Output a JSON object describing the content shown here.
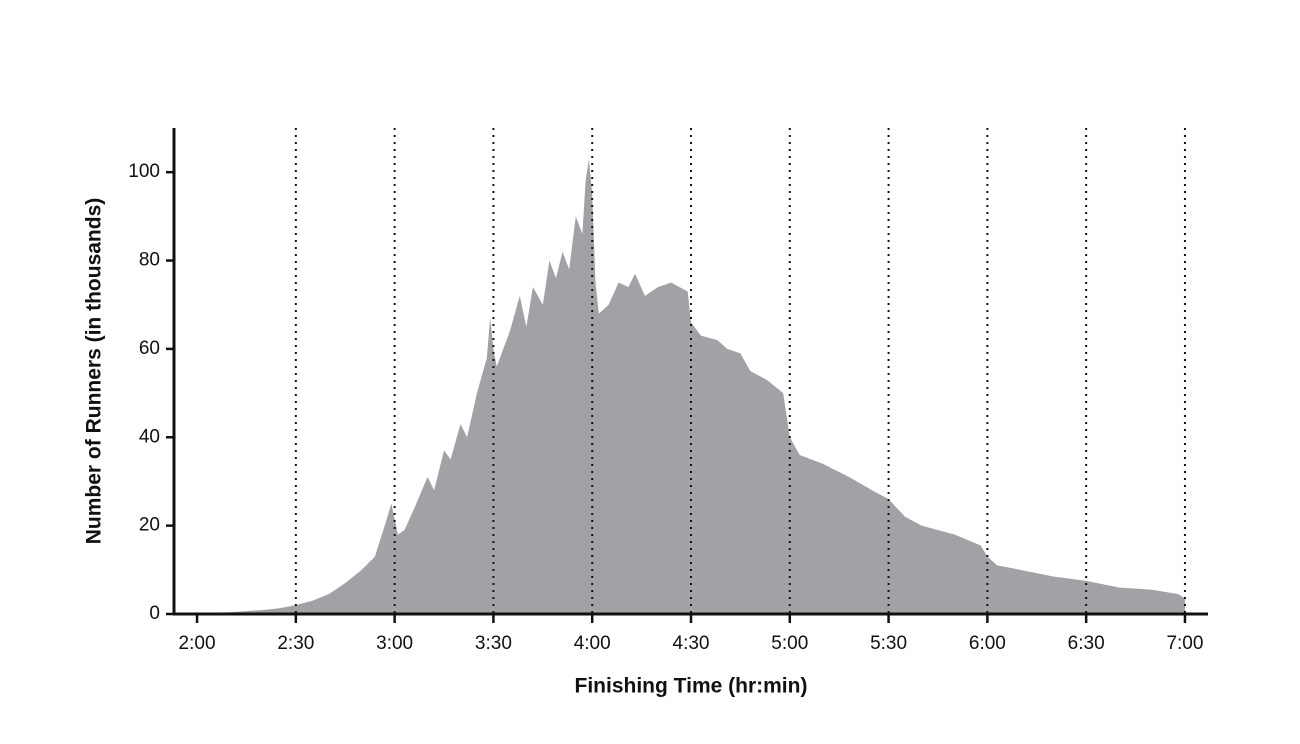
{
  "chart_data": {
    "type": "area",
    "x_label": "Finishing Time (hr:min)",
    "y_label": "Number of Runners (in thousands)",
    "x": [
      120,
      130,
      140,
      145,
      150,
      155,
      160,
      165,
      170,
      174,
      177,
      179,
      181,
      183,
      186,
      190,
      192,
      195,
      197,
      200,
      202,
      205,
      208,
      209,
      210,
      211,
      213,
      215,
      218,
      220,
      222,
      225,
      227,
      229,
      231,
      233,
      235,
      237,
      238,
      239,
      240,
      241,
      242,
      245,
      248,
      251,
      253,
      256,
      260,
      264,
      269,
      270,
      273,
      278,
      281,
      285,
      288,
      293,
      298,
      300,
      303,
      310,
      318,
      325,
      330,
      335,
      340,
      350,
      358,
      360,
      363,
      370,
      380,
      390,
      400,
      410,
      418,
      420
    ],
    "values": [
      0.2,
      0.4,
      0.9,
      1.3,
      2,
      3,
      4.5,
      7,
      10,
      13,
      20,
      25,
      18,
      19,
      24,
      31,
      28,
      37,
      35,
      43,
      40,
      50,
      58,
      67,
      60,
      56,
      60,
      64,
      72,
      65,
      74,
      70,
      80,
      76,
      82,
      78,
      90,
      86,
      98,
      103,
      95,
      75,
      68,
      70,
      75,
      74,
      77,
      72,
      74,
      75,
      73,
      66,
      63,
      62,
      60,
      59,
      55,
      53,
      50,
      40,
      36,
      34,
      31,
      28,
      26,
      22,
      20,
      18,
      15.5,
      13,
      11,
      10,
      8.5,
      7.5,
      6,
      5.5,
      4.5,
      3.5
    ],
    "color": "#a2a1a6",
    "xlim": [
      113,
      427
    ],
    "ylim": [
      0,
      110
    ],
    "xticks": [
      {
        "value": 120,
        "label": "2:00"
      },
      {
        "value": 150,
        "label": "2:30"
      },
      {
        "value": 180,
        "label": "3:00"
      },
      {
        "value": 210,
        "label": "3:30"
      },
      {
        "value": 240,
        "label": "4:00"
      },
      {
        "value": 270,
        "label": "4:30"
      },
      {
        "value": 300,
        "label": "5:00"
      },
      {
        "value": 330,
        "label": "5:30"
      },
      {
        "value": 360,
        "label": "6:00"
      },
      {
        "value": 390,
        "label": "6:30"
      },
      {
        "value": 420,
        "label": "7:00"
      }
    ],
    "yticks": [
      0,
      20,
      40,
      60,
      80,
      100
    ],
    "marker_lines": [
      150,
      180,
      210,
      240,
      270,
      300,
      330,
      360,
      390,
      420
    ]
  }
}
